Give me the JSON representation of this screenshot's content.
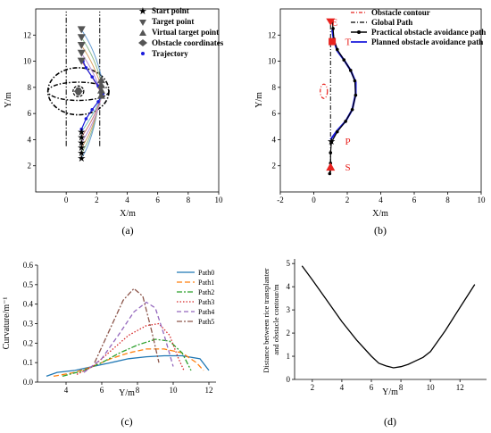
{
  "chart_data": [
    {
      "id": "a",
      "type": "scatter",
      "caption": "(a)",
      "xlabel": "X/m",
      "ylabel": "Y/m",
      "xlim": [
        -2,
        10
      ],
      "ylim": [
        0,
        14
      ],
      "xticks": [
        0,
        2,
        4,
        6,
        8,
        10
      ],
      "yticks": [
        2,
        4,
        6,
        8,
        10,
        12
      ],
      "legend_position": "top-right",
      "legend": [
        "Start point",
        "Target point",
        "Virtual target point",
        "Obstacle coordinates",
        "Trajectory"
      ],
      "start_points": [
        [
          1.0,
          2.6
        ],
        [
          1.0,
          3.0
        ],
        [
          1.0,
          3.4
        ],
        [
          1.0,
          3.8
        ],
        [
          1.0,
          4.2
        ],
        [
          1.0,
          4.6
        ]
      ],
      "target_points": [
        [
          1.0,
          12.4
        ],
        [
          1.0,
          11.8
        ],
        [
          1.0,
          11.2
        ],
        [
          1.0,
          10.6
        ],
        [
          1.0,
          10.0
        ]
      ],
      "virtual_target_points": [
        [
          2.3,
          8.6
        ],
        [
          2.3,
          8.2
        ],
        [
          2.3,
          7.8
        ],
        [
          2.3,
          7.4
        ]
      ],
      "obstacle_point": [
        0.8,
        7.7
      ],
      "trajectory": [
        [
          1.0,
          4.8
        ],
        [
          1.3,
          5.6
        ],
        [
          1.7,
          6.3
        ],
        [
          2.1,
          6.9
        ],
        [
          2.4,
          7.5
        ],
        [
          2.1,
          8.1
        ],
        [
          1.7,
          8.8
        ],
        [
          1.3,
          9.5
        ],
        [
          1.1,
          10.0
        ]
      ],
      "boundary_x": [
        0.0,
        2.2
      ]
    },
    {
      "id": "b",
      "type": "line",
      "caption": "(b)",
      "xlabel": "X/m",
      "ylabel": "Y/m",
      "xlim": [
        -2,
        10
      ],
      "ylim": [
        0,
        14
      ],
      "xticks": [
        -2,
        0,
        2,
        4,
        6,
        8,
        10
      ],
      "yticks": [
        2,
        4,
        6,
        8,
        10,
        12
      ],
      "legend_position": "top-right",
      "legend": [
        "Obstacle contour",
        "Global Path",
        "Practical obstacle avoidance path",
        "Planned obstacle avoidance path"
      ],
      "annotations": [
        {
          "text": "E",
          "x": 0.8,
          "y": 13.0
        },
        {
          "text": "T",
          "x": 1.6,
          "y": 11.5
        },
        {
          "text": "P",
          "x": 1.6,
          "y": 3.9
        },
        {
          "text": "S",
          "x": 1.6,
          "y": 1.9
        }
      ],
      "obstacle_contour_center": [
        0.6,
        7.7
      ],
      "global_path": [
        [
          1.0,
          1.5
        ],
        [
          1.0,
          13.1
        ]
      ],
      "planned_path": [
        [
          1.0,
          4.0
        ],
        [
          1.4,
          4.7
        ],
        [
          1.9,
          5.4
        ],
        [
          2.3,
          6.3
        ],
        [
          2.5,
          7.5
        ],
        [
          2.5,
          8.4
        ],
        [
          2.2,
          9.3
        ],
        [
          1.8,
          10.1
        ],
        [
          1.4,
          10.8
        ],
        [
          1.2,
          11.6
        ],
        [
          1.1,
          12.4
        ]
      ],
      "practical_path": [
        [
          0.95,
          1.4
        ],
        [
          1.0,
          2.2
        ],
        [
          1.0,
          3.0
        ],
        [
          1.05,
          3.8
        ],
        [
          1.4,
          4.6
        ],
        [
          1.9,
          5.4
        ],
        [
          2.3,
          6.3
        ],
        [
          2.5,
          7.4
        ],
        [
          2.45,
          8.5
        ],
        [
          2.2,
          9.3
        ],
        [
          1.8,
          10.1
        ],
        [
          1.4,
          10.9
        ],
        [
          1.2,
          11.7
        ],
        [
          1.15,
          12.5
        ],
        [
          1.1,
          13.0
        ]
      ]
    },
    {
      "id": "c",
      "type": "line",
      "caption": "(c)",
      "xlabel": "Y/m",
      "ylabel": "Curvature/m⁻¹",
      "xlim": [
        2.4,
        12.4
      ],
      "ylim": [
        0,
        0.6
      ],
      "xticks": [
        4,
        6,
        8,
        10,
        12
      ],
      "yticks": [
        0.0,
        0.1,
        0.2,
        0.3,
        0.4,
        0.5,
        0.6
      ],
      "legend_position": "top-right",
      "series": [
        {
          "name": "Path0",
          "color": "#1f77b4",
          "dash": "",
          "points": [
            [
              2.9,
              0.03
            ],
            [
              3.5,
              0.05
            ],
            [
              4.5,
              0.06
            ],
            [
              5.5,
              0.08
            ],
            [
              6.5,
              0.1
            ],
            [
              7.5,
              0.12
            ],
            [
              8.5,
              0.13
            ],
            [
              9.5,
              0.135
            ],
            [
              10.5,
              0.135
            ],
            [
              11.5,
              0.12
            ],
            [
              12.0,
              0.06
            ]
          ]
        },
        {
          "name": "Path1",
          "color": "#ff7f0e",
          "dash": "6,3",
          "points": [
            [
              3.3,
              0.03
            ],
            [
              4.5,
              0.05
            ],
            [
              5.5,
              0.08
            ],
            [
              6.5,
              0.12
            ],
            [
              7.5,
              0.15
            ],
            [
              8.5,
              0.17
            ],
            [
              9.5,
              0.17
            ],
            [
              10.5,
              0.15
            ],
            [
              11.3,
              0.1
            ],
            [
              11.7,
              0.06
            ]
          ]
        },
        {
          "name": "Path2",
          "color": "#2ca02c",
          "dash": "6,2,2,2",
          "points": [
            [
              3.8,
              0.03
            ],
            [
              5.0,
              0.06
            ],
            [
              6.0,
              0.1
            ],
            [
              7.0,
              0.15
            ],
            [
              8.0,
              0.19
            ],
            [
              9.0,
              0.22
            ],
            [
              9.8,
              0.21
            ],
            [
              10.5,
              0.15
            ],
            [
              11.0,
              0.06
            ]
          ]
        },
        {
          "name": "Path3",
          "color": "#d62728",
          "dash": "1.5,2",
          "points": [
            [
              4.6,
              0.04
            ],
            [
              5.5,
              0.08
            ],
            [
              6.5,
              0.16
            ],
            [
              7.5,
              0.24
            ],
            [
              8.5,
              0.29
            ],
            [
              9.2,
              0.3
            ],
            [
              9.8,
              0.24
            ],
            [
              10.3,
              0.12
            ],
            [
              10.6,
              0.06
            ]
          ]
        },
        {
          "name": "Path4",
          "color": "#9467bd",
          "dash": "5,3",
          "points": [
            [
              5.0,
              0.05
            ],
            [
              6.0,
              0.12
            ],
            [
              7.0,
              0.25
            ],
            [
              7.8,
              0.36
            ],
            [
              8.5,
              0.41
            ],
            [
              9.0,
              0.38
            ],
            [
              9.5,
              0.24
            ],
            [
              10.0,
              0.08
            ]
          ]
        },
        {
          "name": "Path5",
          "color": "#8c564b",
          "dash": "6,2,2,2",
          "points": [
            [
              5.6,
              0.1
            ],
            [
              6.4,
              0.26
            ],
            [
              7.2,
              0.42
            ],
            [
              7.8,
              0.48
            ],
            [
              8.3,
              0.44
            ],
            [
              8.8,
              0.26
            ],
            [
              9.2,
              0.1
            ]
          ]
        }
      ]
    },
    {
      "id": "d",
      "type": "line",
      "caption": "(d)",
      "xlabel": "Y/m",
      "ylabel": "Distance between rice transplanter and obstacle contour/m",
      "xlim": [
        0.8,
        13.8
      ],
      "ylim": [
        0,
        5.2
      ],
      "xticks": [
        2,
        4,
        6,
        8,
        10,
        12
      ],
      "yticks": [
        0,
        1,
        2,
        3,
        4,
        5
      ],
      "series": [
        {
          "name": "",
          "color": "#000000",
          "points": [
            [
              1.3,
              4.9
            ],
            [
              2.0,
              4.3
            ],
            [
              3.0,
              3.4
            ],
            [
              4.0,
              2.5
            ],
            [
              5.0,
              1.7
            ],
            [
              6.0,
              1.0
            ],
            [
              6.5,
              0.7
            ],
            [
              7.0,
              0.58
            ],
            [
              7.5,
              0.5
            ],
            [
              8.0,
              0.55
            ],
            [
              8.5,
              0.65
            ],
            [
              9.0,
              0.8
            ],
            [
              9.5,
              0.95
            ],
            [
              10.0,
              1.2
            ],
            [
              11.0,
              2.1
            ],
            [
              12.0,
              3.1
            ],
            [
              13.0,
              4.1
            ]
          ]
        }
      ]
    }
  ]
}
